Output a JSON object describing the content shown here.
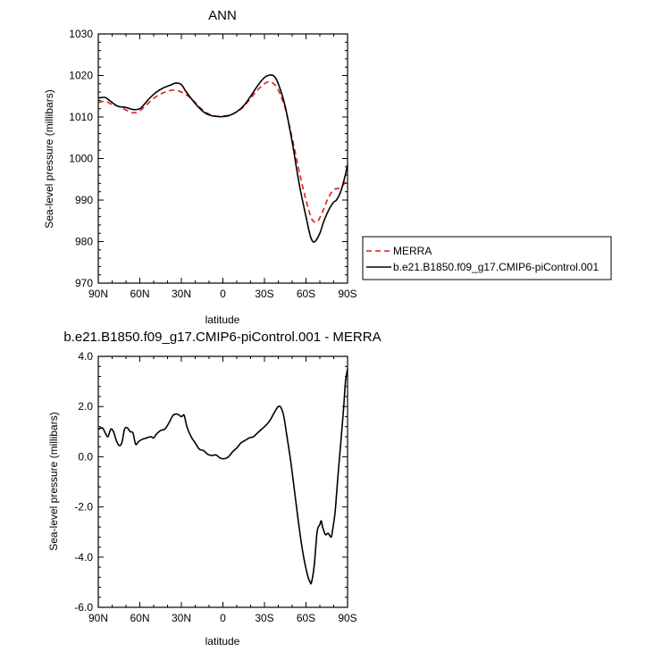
{
  "chart_data": [
    {
      "type": "line",
      "title": "ANN",
      "xlabel": "latitude",
      "ylabel": "Sea-level pressure (millibars)",
      "x_ticks": [
        "90N",
        "60N",
        "30N",
        "0",
        "30S",
        "60S",
        "90S"
      ],
      "y_ticks": [
        "970",
        "980",
        "990",
        "1000",
        "1010",
        "1020",
        "1030"
      ],
      "xlim": [
        90,
        -90
      ],
      "ylim": [
        970,
        1030
      ],
      "legend_position": "right",
      "series": [
        {
          "name": "MERRA",
          "color": "#e41a1c",
          "dash": "dashed",
          "points": [
            [
              90,
              1013.5
            ],
            [
              85,
              1013.8
            ],
            [
              80,
              1013.0
            ],
            [
              75,
              1012.5
            ],
            [
              70,
              1011.7
            ],
            [
              65,
              1011.0
            ],
            [
              60,
              1011.5
            ],
            [
              55,
              1013.0
            ],
            [
              50,
              1014.5
            ],
            [
              45,
              1015.5
            ],
            [
              40,
              1016.2
            ],
            [
              35,
              1016.5
            ],
            [
              30,
              1016.0
            ],
            [
              25,
              1015.0
            ],
            [
              20,
              1013.5
            ],
            [
              15,
              1011.8
            ],
            [
              10,
              1010.7
            ],
            [
              5,
              1010.2
            ],
            [
              0,
              1010.2
            ],
            [
              -5,
              1010.5
            ],
            [
              -10,
              1011.2
            ],
            [
              -15,
              1012.5
            ],
            [
              -20,
              1014.5
            ],
            [
              -25,
              1016.5
            ],
            [
              -30,
              1018.0
            ],
            [
              -33,
              1018.5
            ],
            [
              -36,
              1018.2
            ],
            [
              -40,
              1016.5
            ],
            [
              -45,
              1012.0
            ],
            [
              -50,
              1005.0
            ],
            [
              -55,
              997.0
            ],
            [
              -60,
              990.0
            ],
            [
              -63,
              986.5
            ],
            [
              -65,
              985.0
            ],
            [
              -68,
              984.7
            ],
            [
              -70,
              985.8
            ],
            [
              -73,
              988.0
            ],
            [
              -76,
              990.5
            ],
            [
              -80,
              992.5
            ],
            [
              -85,
              993.0
            ],
            [
              -90,
              995.0
            ]
          ]
        },
        {
          "name": "b.e21.B1850.f09_g17.CMIP6-piControl.001",
          "color": "#000000",
          "dash": "solid",
          "points": [
            [
              90,
              1014.6
            ],
            [
              85,
              1014.7
            ],
            [
              82,
              1014.0
            ],
            [
              78,
              1013.0
            ],
            [
              75,
              1012.5
            ],
            [
              70,
              1012.3
            ],
            [
              65,
              1011.8
            ],
            [
              60,
              1012.0
            ],
            [
              57,
              1013.0
            ],
            [
              53,
              1014.5
            ],
            [
              48,
              1016.0
            ],
            [
              43,
              1017.0
            ],
            [
              37,
              1017.8
            ],
            [
              34,
              1018.2
            ],
            [
              30,
              1017.8
            ],
            [
              27,
              1016.3
            ],
            [
              23,
              1014.5
            ],
            [
              18,
              1012.5
            ],
            [
              13,
              1011.0
            ],
            [
              8,
              1010.3
            ],
            [
              3,
              1010.1
            ],
            [
              0,
              1010.1
            ],
            [
              -5,
              1010.4
            ],
            [
              -10,
              1011.3
            ],
            [
              -15,
              1012.7
            ],
            [
              -20,
              1015.0
            ],
            [
              -25,
              1017.5
            ],
            [
              -30,
              1019.5
            ],
            [
              -34,
              1020.1
            ],
            [
              -37,
              1019.8
            ],
            [
              -40,
              1018.0
            ],
            [
              -45,
              1012.5
            ],
            [
              -50,
              1004.0
            ],
            [
              -55,
              994.0
            ],
            [
              -60,
              986.0
            ],
            [
              -63,
              981.5
            ],
            [
              -65,
              980.0
            ],
            [
              -67,
              980.2
            ],
            [
              -70,
              982.0
            ],
            [
              -73,
              985.0
            ],
            [
              -77,
              988.0
            ],
            [
              -80,
              989.5
            ],
            [
              -82,
              990.0
            ],
            [
              -85,
              992.0
            ],
            [
              -88,
              995.5
            ],
            [
              -90,
              998.5
            ]
          ]
        }
      ]
    },
    {
      "type": "line",
      "title": "b.e21.B1850.f09_g17.CMIP6-piControl.001 - MERRA",
      "xlabel": "latitude",
      "ylabel": "Sea-level pressure (millibars)",
      "x_ticks": [
        "90N",
        "60N",
        "30N",
        "0",
        "30S",
        "60S",
        "90S"
      ],
      "y_ticks": [
        "-6.0",
        "-4.0",
        "-2.0",
        "0.0",
        "2.0",
        "4.0"
      ],
      "xlim": [
        90,
        -90
      ],
      "ylim": [
        -6,
        4
      ],
      "series": [
        {
          "color": "#000000",
          "dash": "solid",
          "points": [
            [
              90,
              1.1
            ],
            [
              87,
              1.15
            ],
            [
              85,
              0.95
            ],
            [
              83,
              0.8
            ],
            [
              81,
              1.1
            ],
            [
              79,
              1.0
            ],
            [
              77,
              0.65
            ],
            [
              75,
              0.45
            ],
            [
              73,
              0.55
            ],
            [
              71,
              1.1
            ],
            [
              69,
              1.15
            ],
            [
              67,
              1.0
            ],
            [
              65,
              0.95
            ],
            [
              63,
              0.5
            ],
            [
              61,
              0.6
            ],
            [
              58,
              0.7
            ],
            [
              55,
              0.75
            ],
            [
              52,
              0.8
            ],
            [
              50,
              0.75
            ],
            [
              48,
              0.9
            ],
            [
              45,
              1.05
            ],
            [
              42,
              1.1
            ],
            [
              39,
              1.35
            ],
            [
              36,
              1.65
            ],
            [
              33,
              1.7
            ],
            [
              30,
              1.6
            ],
            [
              28,
              1.65
            ],
            [
              26,
              1.2
            ],
            [
              23,
              0.8
            ],
            [
              20,
              0.55
            ],
            [
              17,
              0.3
            ],
            [
              14,
              0.25
            ],
            [
              11,
              0.1
            ],
            [
              8,
              0.05
            ],
            [
              5,
              0.07
            ],
            [
              2,
              -0.05
            ],
            [
              -1,
              -0.08
            ],
            [
              -4,
              0.0
            ],
            [
              -7,
              0.2
            ],
            [
              -10,
              0.35
            ],
            [
              -13,
              0.55
            ],
            [
              -16,
              0.65
            ],
            [
              -19,
              0.75
            ],
            [
              -22,
              0.8
            ],
            [
              -25,
              0.95
            ],
            [
              -28,
              1.1
            ],
            [
              -31,
              1.25
            ],
            [
              -34,
              1.45
            ],
            [
              -37,
              1.75
            ],
            [
              -40,
              2.0
            ],
            [
              -42,
              1.95
            ],
            [
              -44,
              1.6
            ],
            [
              -46,
              0.9
            ],
            [
              -49,
              -0.2
            ],
            [
              -52,
              -1.5
            ],
            [
              -55,
              -2.8
            ],
            [
              -58,
              -3.9
            ],
            [
              -61,
              -4.7
            ],
            [
              -63,
              -5.0
            ],
            [
              -64,
              -5.0
            ],
            [
              -66,
              -4.3
            ],
            [
              -68,
              -3.0
            ],
            [
              -70,
              -2.7
            ],
            [
              -71,
              -2.55
            ],
            [
              -72,
              -2.8
            ],
            [
              -74,
              -3.1
            ],
            [
              -76,
              -3.05
            ],
            [
              -78,
              -3.2
            ],
            [
              -79,
              -3.0
            ],
            [
              -81,
              -2.2
            ],
            [
              -83,
              -0.8
            ],
            [
              -85,
              0.5
            ],
            [
              -87,
              1.8
            ],
            [
              -88.5,
              3.0
            ],
            [
              -90,
              3.5
            ]
          ]
        }
      ]
    }
  ]
}
